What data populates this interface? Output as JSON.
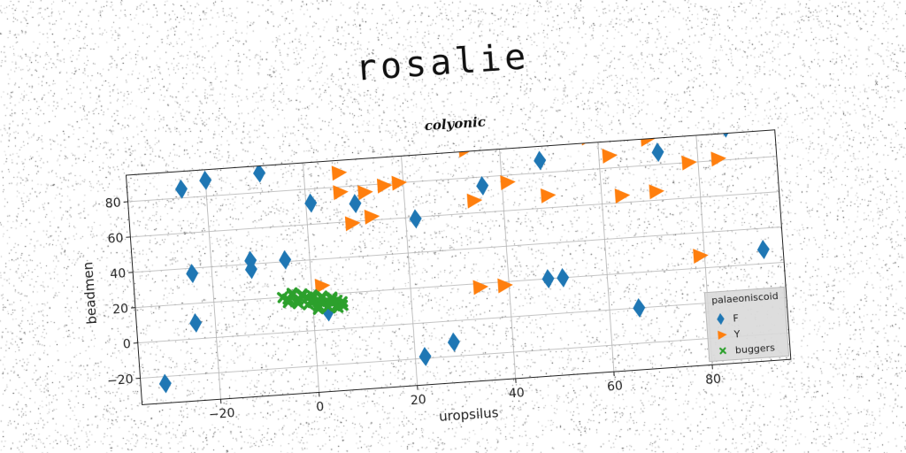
{
  "page": {
    "title": "rosalie"
  },
  "chart_data": {
    "type": "scatter",
    "title": "rosalie",
    "subtitle": "colyonic",
    "xlabel": "uropsilus",
    "ylabel": "beadmen",
    "xlim": [
      -36,
      96
    ],
    "ylim": [
      -35,
      95
    ],
    "xticks": [
      -20,
      0,
      20,
      40,
      60,
      80
    ],
    "yticks": [
      -20,
      0,
      20,
      40,
      60,
      80
    ],
    "grid": true,
    "legend": {
      "title": "palaeoniscoid",
      "position": "lower-right"
    },
    "colors": {
      "F": "#1f77b4",
      "Y": "#ff7f0e",
      "buggers": "#2ca02c"
    },
    "series": [
      {
        "name": "F",
        "marker": "thin_diamond",
        "x": [
          -31,
          -25,
          -24,
          -24,
          -20,
          -12,
          -12,
          -9,
          -5,
          1,
          3,
          10,
          22,
          22,
          28,
          36,
          43,
          48,
          48,
          51,
          66,
          72,
          86,
          92
        ],
        "y": [
          -24,
          85,
          9,
          37,
          89,
          37,
          42,
          91,
          41,
          72,
          10,
          70,
          59,
          -19,
          -12,
          75,
          103,
          20,
          87,
          20,
          0,
          87,
          98,
          28
        ]
      },
      {
        "name": "Y",
        "marker": "triangle_right",
        "x": [
          2,
          7,
          7,
          9,
          12,
          13,
          16,
          19,
          33,
          34,
          34,
          39,
          41,
          49,
          58,
          59,
          61,
          62,
          64,
          70,
          71,
          78,
          79,
          84
        ],
        "y": [
          25,
          77,
          88,
          59,
          76,
          62,
          79,
          80,
          96,
          18,
          67,
          18,
          76,
          67,
          98,
          101,
          102,
          87,
          64,
          95,
          65,
          80,
          27,
          81
        ]
      },
      {
        "name": "buggers",
        "marker": "x",
        "x": [
          -6,
          -5,
          -4,
          -3,
          -2,
          -1,
          0,
          0,
          1,
          2,
          2,
          3,
          4,
          5,
          5,
          6,
          -5,
          -3,
          -1,
          1,
          3,
          4,
          6,
          -2,
          0,
          2,
          4,
          -4,
          1,
          5
        ],
        "y": [
          20,
          19,
          21,
          18,
          20,
          19,
          18,
          16,
          17,
          15,
          18,
          16,
          15,
          14,
          16,
          15,
          17,
          16,
          15,
          14,
          13,
          17,
          13,
          21,
          20,
          19,
          18,
          22,
          12,
          12
        ]
      }
    ]
  }
}
